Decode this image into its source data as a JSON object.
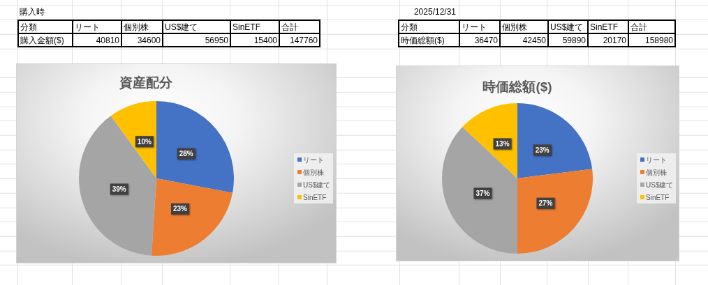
{
  "chart_data": [
    {
      "type": "other",
      "title": "購入時",
      "categories": [
        "リート",
        "個別株",
        "US$建て",
        "SinETF"
      ],
      "values": [
        40810,
        34600,
        56950,
        15400
      ],
      "data_labels": true,
      "annotations": [
        "分類",
        "購入金額($)",
        "合計",
        "147760"
      ]
    },
    {
      "type": "other",
      "title": "2025/12/31",
      "categories": [
        "リート",
        "個別株",
        "US$建て",
        "SinETF"
      ],
      "values": [
        36470,
        42450,
        59890,
        20170
      ],
      "data_labels": true,
      "annotations": [
        "分類",
        "時価総額($)",
        "合計",
        "158980"
      ]
    },
    {
      "type": "pie",
      "title": "資産配分",
      "categories": [
        "リート",
        "個別株",
        "US$建て",
        "SinETF"
      ],
      "values": [
        28,
        23,
        39,
        10
      ],
      "colors": [
        "#4472c4",
        "#ed7d31",
        "#a5a5a5",
        "#ffc000"
      ],
      "value_labels": [
        "28%",
        "23%",
        "39%",
        "10%"
      ],
      "legend": "right"
    },
    {
      "type": "pie",
      "title": "時価総額($)",
      "categories": [
        "リート",
        "個別株",
        "US$建て",
        "SinETF"
      ],
      "values": [
        23,
        27,
        37,
        13
      ],
      "colors": [
        "#4472c4",
        "#ed7d31",
        "#a5a5a5",
        "#ffc000"
      ],
      "value_labels": [
        "23%",
        "27%",
        "37%",
        "13%"
      ],
      "legend": "right"
    }
  ]
}
